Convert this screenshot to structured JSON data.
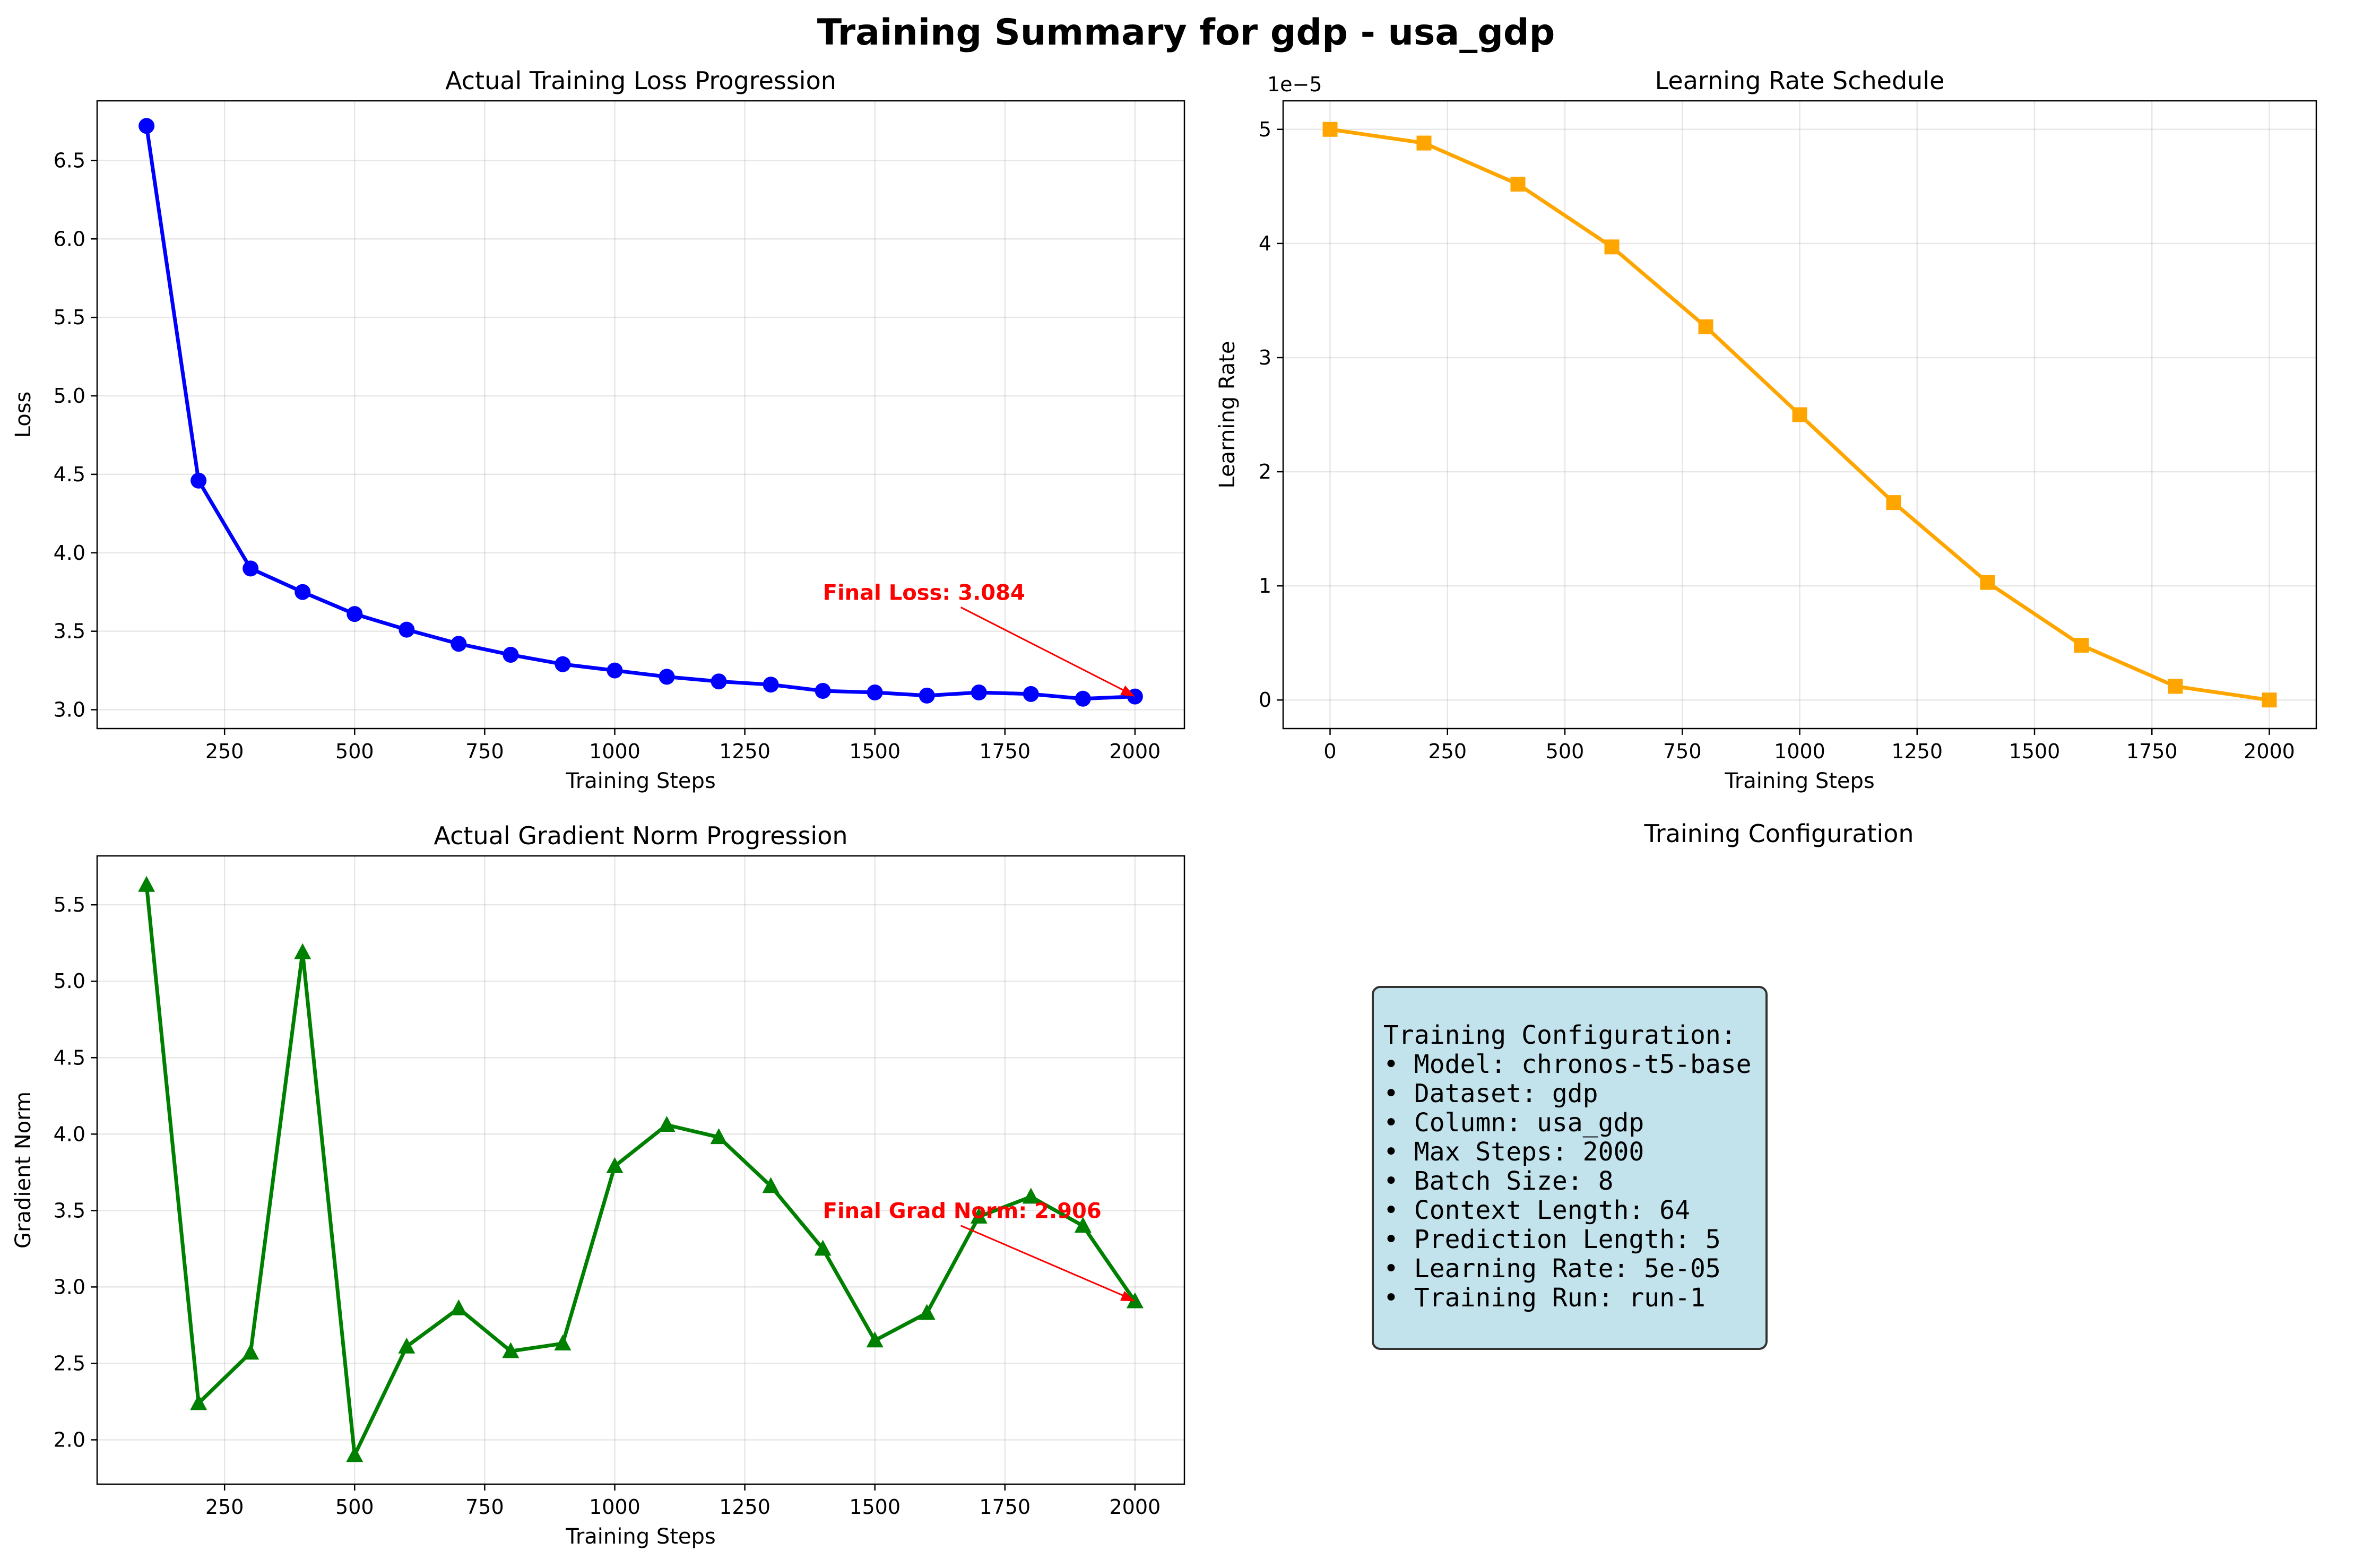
{
  "suptitle": "Training Summary for gdp - usa_gdp",
  "colors": {
    "loss": "#0000ff",
    "lr": "#ffa500",
    "grad": "#008000",
    "annotation": "#ff0000"
  },
  "chart_data": [
    {
      "type": "line",
      "title": "Actual Training Loss Progression",
      "xlabel": "Training Steps",
      "ylabel": "Loss",
      "marker": "circle",
      "grid": true,
      "xlim": [
        5,
        2095
      ],
      "ylim": [
        2.88,
        6.88
      ],
      "xticks": [
        250,
        500,
        750,
        1000,
        1250,
        1500,
        1750,
        2000
      ],
      "yticks": [
        3.0,
        3.5,
        4.0,
        4.5,
        5.0,
        5.5,
        6.0,
        6.5
      ],
      "ytick_decimals": 1,
      "x": [
        100,
        200,
        300,
        400,
        500,
        600,
        700,
        800,
        900,
        1000,
        1100,
        1200,
        1300,
        1400,
        1500,
        1600,
        1700,
        1800,
        1900,
        2000
      ],
      "y": [
        6.72,
        4.46,
        3.9,
        3.75,
        3.61,
        3.51,
        3.42,
        3.35,
        3.29,
        3.25,
        3.21,
        3.18,
        3.16,
        3.12,
        3.11,
        3.09,
        3.11,
        3.1,
        3.07,
        3.084
      ],
      "annotation": {
        "text": "Final Loss: 3.084",
        "x": 2000,
        "y": 3.084,
        "text_x": 1400,
        "text_y": 3.7
      }
    },
    {
      "type": "line",
      "title": "Learning Rate Schedule",
      "xlabel": "Training Steps",
      "ylabel": "Learning Rate",
      "marker": "square",
      "grid": true,
      "offset_text": "1e−5",
      "xlim": [
        -100,
        2100
      ],
      "ylim": [
        -0.25,
        5.25
      ],
      "xticks": [
        0,
        250,
        500,
        750,
        1000,
        1250,
        1500,
        1750,
        2000
      ],
      "yticks": [
        0,
        1,
        2,
        3,
        4,
        5
      ],
      "ytick_decimals": 0,
      "x": [
        0,
        200,
        400,
        600,
        800,
        1000,
        1200,
        1400,
        1600,
        1800,
        2000
      ],
      "y": [
        5.0,
        4.88,
        4.52,
        3.97,
        3.27,
        2.5,
        1.73,
        1.03,
        0.48,
        0.12,
        0.0
      ]
    },
    {
      "type": "line",
      "title": "Actual Gradient Norm Progression",
      "xlabel": "Training Steps",
      "ylabel": "Gradient Norm",
      "marker": "triangle",
      "grid": true,
      "xlim": [
        5,
        2095
      ],
      "ylim": [
        1.71,
        5.82
      ],
      "xticks": [
        250,
        500,
        750,
        1000,
        1250,
        1500,
        1750,
        2000
      ],
      "yticks": [
        2.0,
        2.5,
        3.0,
        3.5,
        4.0,
        4.5,
        5.0,
        5.5
      ],
      "ytick_decimals": 1,
      "x": [
        100,
        200,
        300,
        400,
        500,
        600,
        700,
        800,
        900,
        1000,
        1100,
        1200,
        1300,
        1400,
        1500,
        1600,
        1700,
        1800,
        1900,
        2000
      ],
      "y": [
        5.63,
        2.24,
        2.57,
        5.19,
        1.9,
        2.61,
        2.86,
        2.58,
        2.63,
        3.79,
        4.06,
        3.98,
        3.66,
        3.25,
        2.65,
        2.83,
        3.46,
        3.59,
        3.4,
        2.906
      ],
      "annotation": {
        "text": "Final Grad Norm: 2.906",
        "x": 2000,
        "y": 2.906,
        "text_x": 1400,
        "text_y": 3.45
      }
    }
  ],
  "config_panel": {
    "title": "Training Configuration",
    "lines": [
      "Training Configuration:",
      "• Model: chronos-t5-base",
      "• Dataset: gdp",
      "• Column: usa_gdp",
      "• Max Steps: 2000",
      "• Batch Size: 8",
      "• Context Length: 64",
      "• Prediction Length: 5",
      "• Learning Rate: 5e-05",
      "• Training Run: run-1"
    ]
  }
}
